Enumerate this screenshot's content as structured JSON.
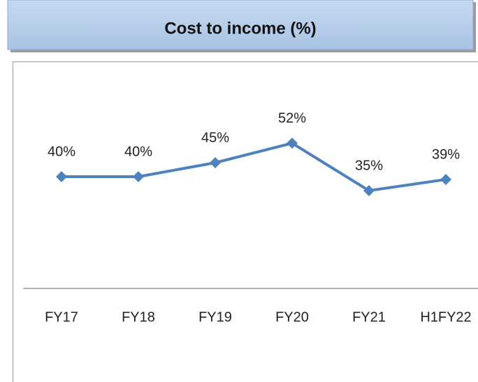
{
  "chart_data": {
    "type": "line",
    "title": "Cost to income (%)",
    "categories": [
      "FY17",
      "FY18",
      "FY19",
      "FY20",
      "FY21",
      "H1FY22"
    ],
    "values": [
      40,
      40,
      45,
      52,
      35,
      39
    ],
    "value_labels": [
      "40%",
      "40%",
      "45%",
      "52%",
      "35%",
      "39%"
    ],
    "color": "#4f81bd",
    "ylim": [
      0,
      80
    ]
  }
}
